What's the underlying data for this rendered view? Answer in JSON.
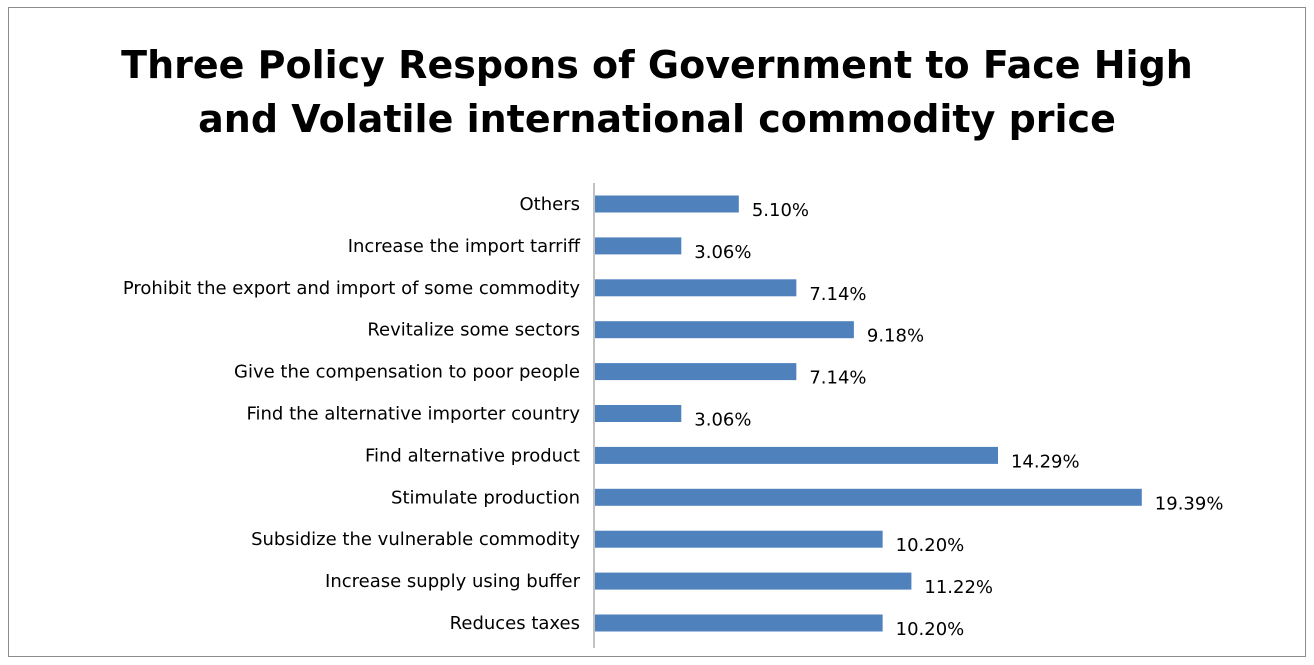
{
  "chart_data": {
    "type": "bar",
    "orientation": "horizontal",
    "title_lines": [
      "Three Policy Respons of Government to Face High",
      "and Volatile international commodity price"
    ],
    "xlabel": "",
    "ylabel": "",
    "grid": false,
    "legend": "none",
    "color": "#4f81bd",
    "xlim": [
      0,
      0.2
    ],
    "categories": [
      "Others",
      "Increase the import tarriff",
      "Prohibit the export and import of some commodity",
      "Revitalize some sectors",
      "Give the compensation to poor people",
      "Find the alternative importer country",
      "Find alternative product",
      "Stimulate production",
      "Subsidize the vulnerable commodity",
      "Increase supply using buffer",
      "Reduces taxes"
    ],
    "values": [
      0.051,
      0.0306,
      0.0714,
      0.0918,
      0.0714,
      0.0306,
      0.1429,
      0.1939,
      0.102,
      0.1122,
      0.102
    ],
    "data_labels": [
      "5.10%",
      "3.06%",
      "7.14%",
      "9.18%",
      "7.14%",
      "3.06%",
      "14.29%",
      "19.39%",
      "10.20%",
      "11.22%",
      "10.20%"
    ]
  }
}
